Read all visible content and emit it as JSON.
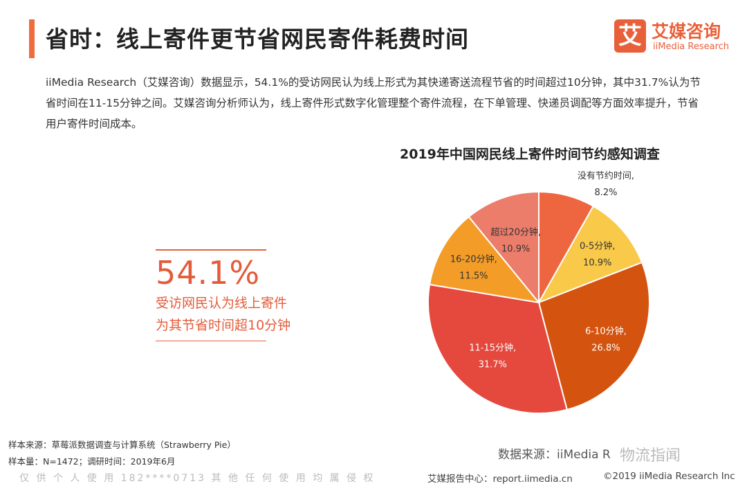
{
  "header": {
    "title": "省时：线上寄件更节省网民寄件耗费时间",
    "logo_mark": "艾",
    "logo_cn": "艾媒咨询",
    "logo_en": "iiMedia Research"
  },
  "intro_text": "iiMedia Research（艾媒咨询）数据显示，54.1%的受访网民认为线上形式为其快递寄送流程节省的时间超过10分钟，其中31.7%认为节省时间在11-15分钟之间。艾媒咨询分析师认为，线上寄件形式数字化管理整个寄件流程，在下单管理、快递员调配等方面效率提升，节省用户寄件时间成本。",
  "callout": {
    "value": "54.1%",
    "line1": "受访网民认为线上寄件",
    "line2": "为其节省时间超10分钟"
  },
  "chart_data": {
    "type": "pie",
    "title": "2019年中国网民线上寄件时间节约感知调查",
    "slices": [
      {
        "label": "没有节约时间,",
        "value": 8.2,
        "display": "8.2%",
        "color": "#ee6640"
      },
      {
        "label": "0-5分钟,",
        "value": 10.9,
        "display": "10.9%",
        "color": "#f9c94a"
      },
      {
        "label": "6-10分钟,",
        "value": 26.8,
        "display": "26.8%",
        "color": "#d4530f"
      },
      {
        "label": "11-15分钟,",
        "value": 31.7,
        "display": "31.7%",
        "color": "#e5483d"
      },
      {
        "label": "16-20分钟,",
        "value": 11.5,
        "display": "11.5%",
        "color": "#f39c27"
      },
      {
        "label": "超过20分钟,",
        "value": 10.9,
        "display": "10.9%",
        "color": "#ec7d6b"
      }
    ],
    "start": "12 o'clock",
    "direction": "clockwise"
  },
  "sample": {
    "source": "样本来源：草莓派数据调查与计算系统（Strawberry Pie）",
    "size": "样本量：N=1472；调研时间：2019年6月"
  },
  "data_source": "数据来源：iiMedia R",
  "watermark": "物流指闻",
  "footer": {
    "left": "仅 供 个 人 使 用 182****0713 其 他 任 何 使 用 均 属 侵 权",
    "center": "艾媒报告中心：report.iimedia.cn",
    "right": "©2019  iiMedia Research  Inc"
  }
}
